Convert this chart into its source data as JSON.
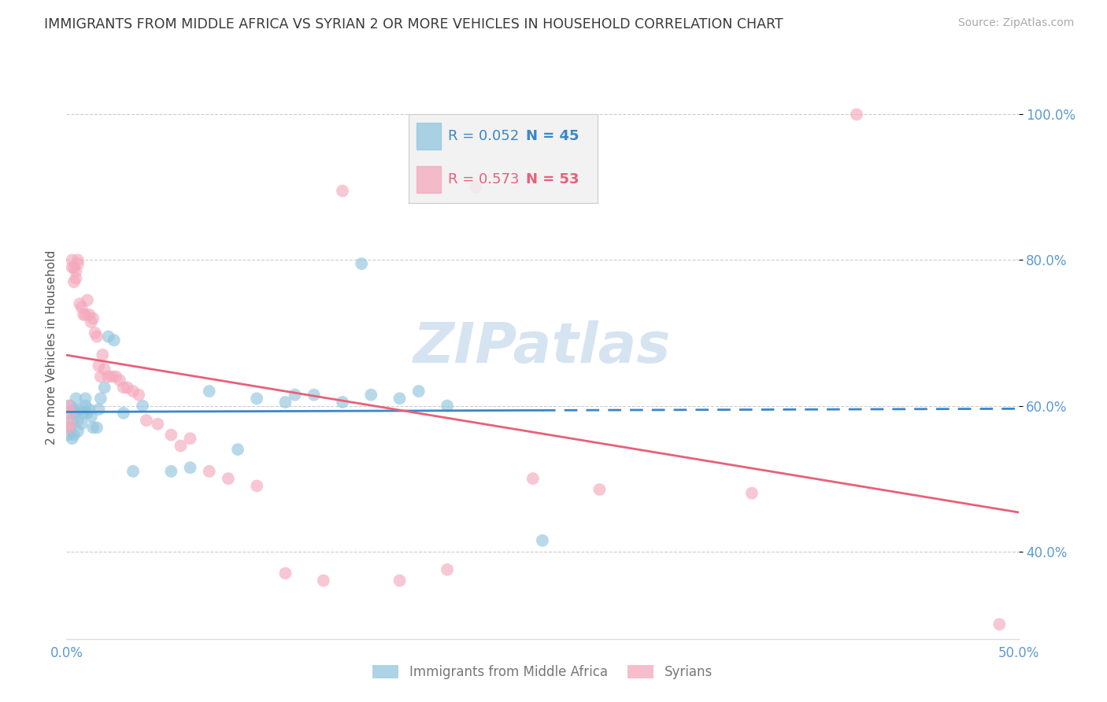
{
  "title": "IMMIGRANTS FROM MIDDLE AFRICA VS SYRIAN 2 OR MORE VEHICLES IN HOUSEHOLD CORRELATION CHART",
  "source": "Source: ZipAtlas.com",
  "ylabel": "2 or more Vehicles in Household",
  "blue_label": "Immigrants from Middle Africa",
  "pink_label": "Syrians",
  "blue_R": "0.052",
  "blue_N": "45",
  "pink_R": "0.573",
  "pink_N": "53",
  "blue_color": "#92c5de",
  "pink_color": "#f4a9bc",
  "blue_line_color": "#3a87c8",
  "pink_line_color": "#e8607a",
  "axis_label_color": "#5b9bd5",
  "title_color": "#3a3a3a",
  "source_color": "#aaaaaa",
  "ylabel_color": "#555555",
  "xlim": [
    0.0,
    0.5
  ],
  "ylim": [
    0.28,
    1.08
  ],
  "yticks": [
    0.4,
    0.6,
    0.8,
    1.0
  ],
  "ytick_labels": [
    "40.0%",
    "60.0%",
    "80.0%",
    "100.0%"
  ],
  "xticks": [
    0.0,
    0.05,
    0.1,
    0.15,
    0.2,
    0.25,
    0.3,
    0.35,
    0.4,
    0.45,
    0.5
  ],
  "xtick_labels": [
    "0.0%",
    "",
    "",
    "",
    "",
    "",
    "",
    "",
    "",
    "",
    "50.0%"
  ],
  "blue_x": [
    0.001,
    0.001,
    0.002,
    0.002,
    0.003,
    0.003,
    0.004,
    0.004,
    0.005,
    0.005,
    0.006,
    0.006,
    0.007,
    0.008,
    0.009,
    0.01,
    0.01,
    0.011,
    0.012,
    0.013,
    0.014,
    0.016,
    0.017,
    0.018,
    0.02,
    0.022,
    0.025,
    0.03,
    0.035,
    0.04,
    0.055,
    0.065,
    0.075,
    0.09,
    0.1,
    0.115,
    0.12,
    0.13,
    0.145,
    0.155,
    0.16,
    0.175,
    0.185,
    0.2,
    0.25
  ],
  "blue_y": [
    0.59,
    0.56,
    0.6,
    0.57,
    0.58,
    0.555,
    0.595,
    0.56,
    0.59,
    0.61,
    0.58,
    0.565,
    0.595,
    0.575,
    0.59,
    0.6,
    0.61,
    0.59,
    0.595,
    0.585,
    0.57,
    0.57,
    0.595,
    0.61,
    0.625,
    0.695,
    0.69,
    0.59,
    0.51,
    0.6,
    0.51,
    0.515,
    0.62,
    0.54,
    0.61,
    0.605,
    0.615,
    0.615,
    0.605,
    0.795,
    0.615,
    0.61,
    0.62,
    0.6,
    0.415
  ],
  "pink_x": [
    0.001,
    0.001,
    0.002,
    0.002,
    0.003,
    0.003,
    0.004,
    0.004,
    0.005,
    0.005,
    0.006,
    0.006,
    0.007,
    0.008,
    0.009,
    0.01,
    0.011,
    0.012,
    0.013,
    0.014,
    0.015,
    0.016,
    0.017,
    0.018,
    0.019,
    0.02,
    0.022,
    0.024,
    0.026,
    0.028,
    0.03,
    0.032,
    0.035,
    0.038,
    0.042,
    0.048,
    0.055,
    0.06,
    0.065,
    0.075,
    0.085,
    0.1,
    0.115,
    0.135,
    0.145,
    0.175,
    0.2,
    0.215,
    0.245,
    0.28,
    0.36,
    0.415,
    0.49
  ],
  "pink_y": [
    0.57,
    0.6,
    0.59,
    0.575,
    0.8,
    0.79,
    0.79,
    0.77,
    0.775,
    0.785,
    0.795,
    0.8,
    0.74,
    0.735,
    0.725,
    0.725,
    0.745,
    0.725,
    0.715,
    0.72,
    0.7,
    0.695,
    0.655,
    0.64,
    0.67,
    0.65,
    0.64,
    0.64,
    0.64,
    0.635,
    0.625,
    0.625,
    0.62,
    0.615,
    0.58,
    0.575,
    0.56,
    0.545,
    0.555,
    0.51,
    0.5,
    0.49,
    0.37,
    0.36,
    0.895,
    0.36,
    0.375,
    0.9,
    0.5,
    0.485,
    0.48,
    1.0,
    0.3
  ],
  "watermark_text": "ZIPatlas",
  "watermark_color": "#c5d9ec",
  "background_color": "#ffffff",
  "grid_color": "#cccccc",
  "legend_box_color": "#f0f0f0",
  "legend_border_color": "#cccccc"
}
